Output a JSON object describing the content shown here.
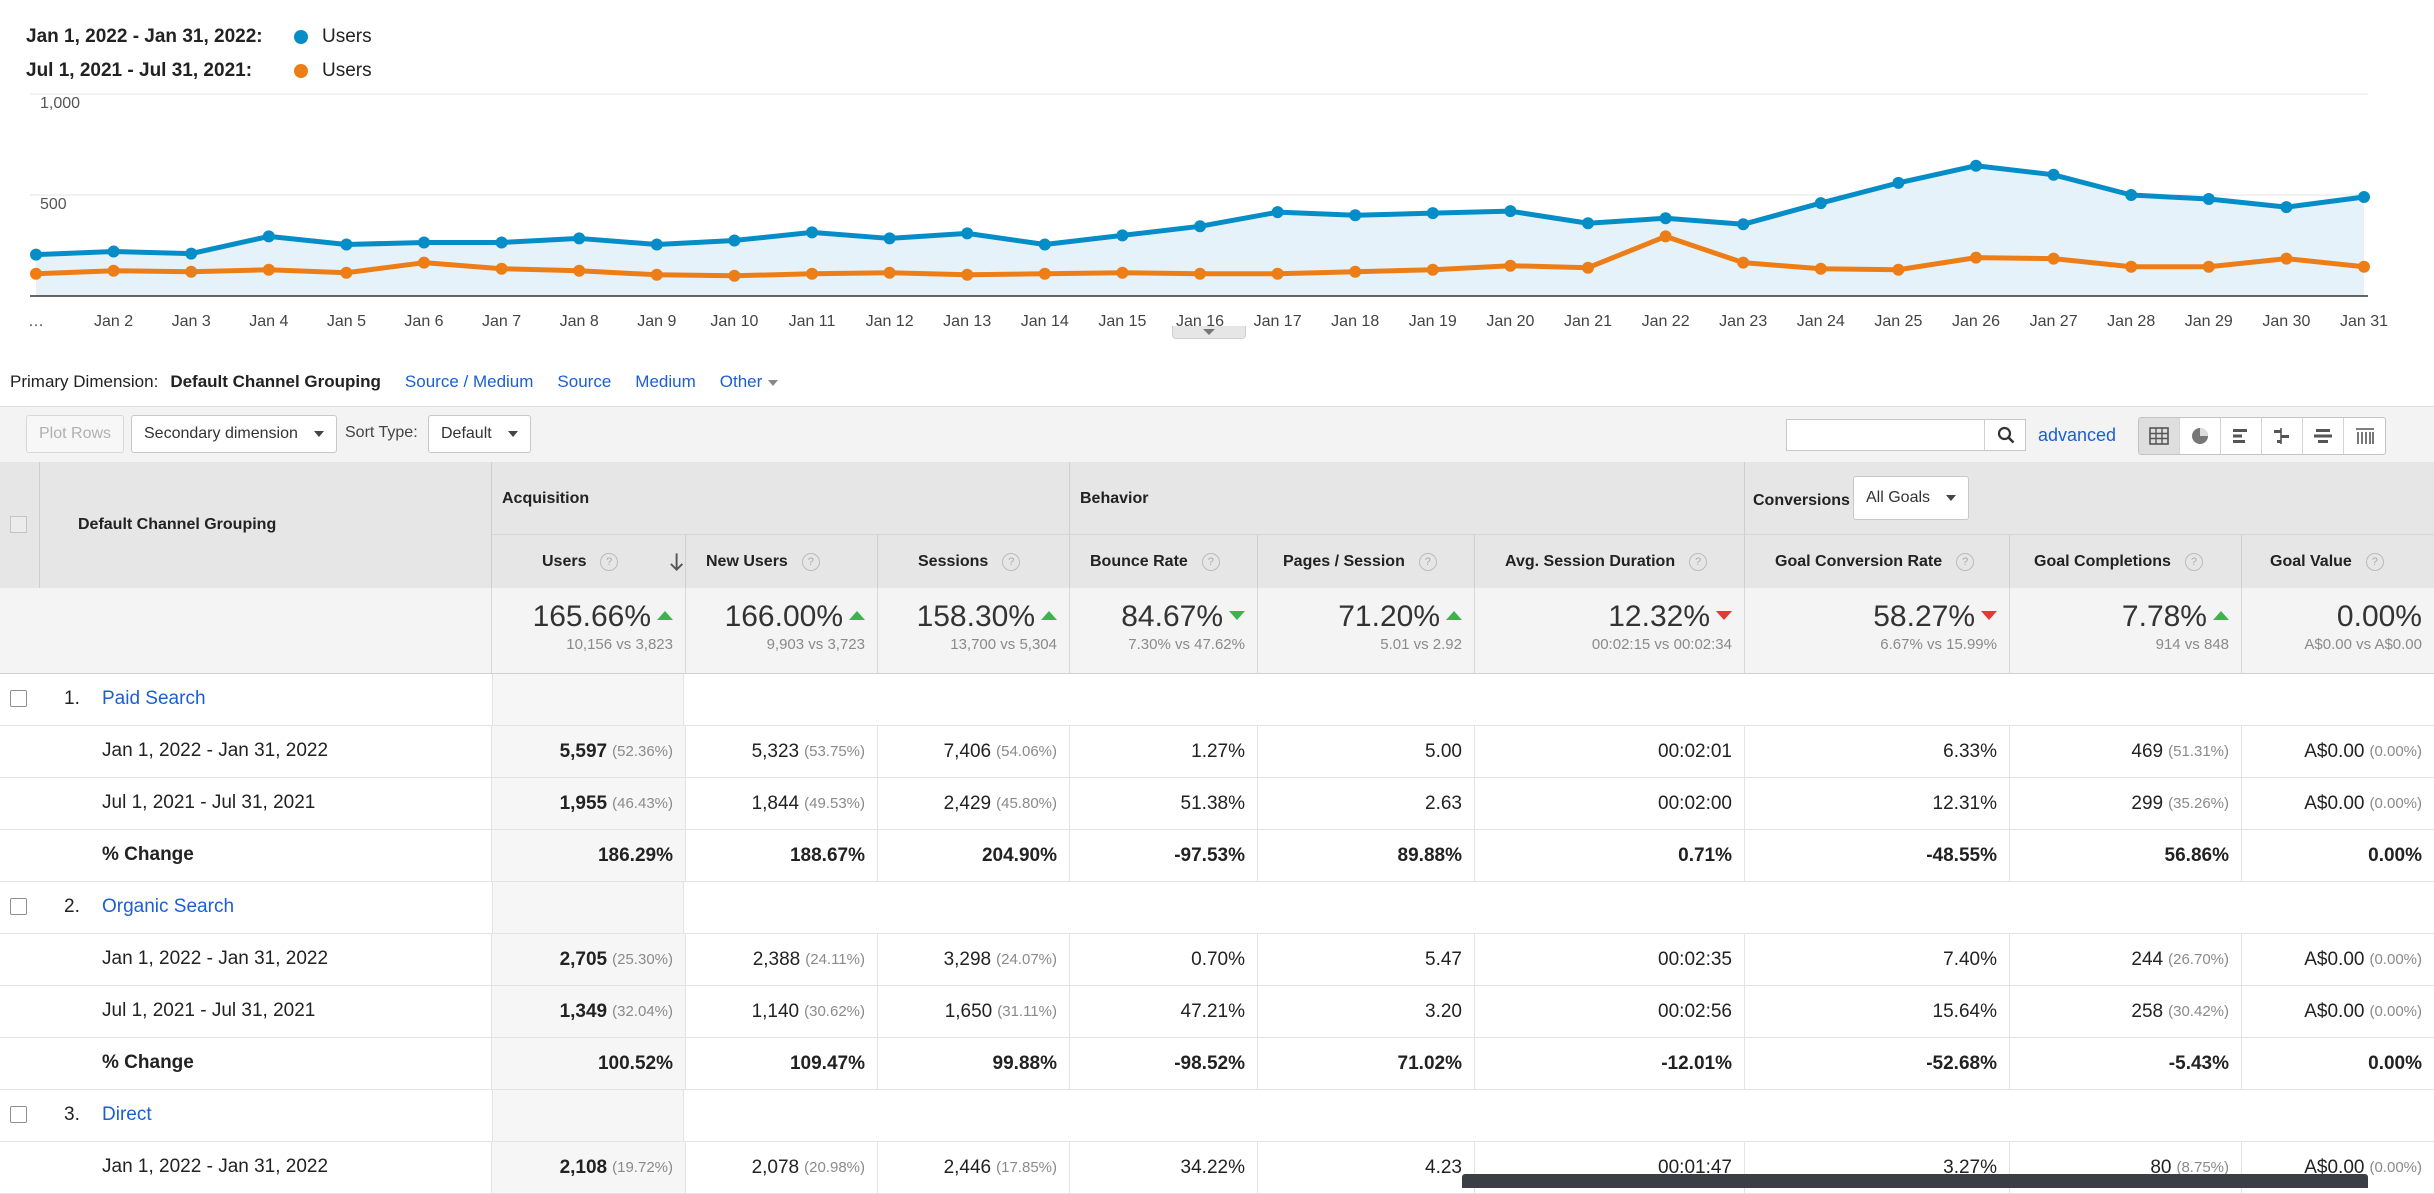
{
  "legend": [
    {
      "range": "Jan 1, 2022 - Jan 31, 2022:",
      "series": "Users",
      "color": "#058dc7"
    },
    {
      "range": "Jul 1, 2021 - Jul 31, 2021:",
      "series": "Users",
      "color": "#ed7e17"
    }
  ],
  "chart_data": {
    "type": "line",
    "x": [
      "…",
      "Jan 2",
      "Jan 3",
      "Jan 4",
      "Jan 5",
      "Jan 6",
      "Jan 7",
      "Jan 8",
      "Jan 9",
      "Jan 10",
      "Jan 11",
      "Jan 12",
      "Jan 13",
      "Jan 14",
      "Jan 15",
      "Jan 16",
      "Jan 17",
      "Jan 18",
      "Jan 19",
      "Jan 20",
      "Jan 21",
      "Jan 22",
      "Jan 23",
      "Jan 24",
      "Jan 25",
      "Jan 26",
      "Jan 27",
      "Jan 28",
      "Jan 29",
      "Jan 30",
      "Jan 31"
    ],
    "y_ticks": [
      "1,000",
      "500"
    ],
    "ylim": [
      0,
      1000
    ],
    "series": [
      {
        "name": "Users",
        "color": "#058dc7",
        "fill": true,
        "values": [
          205,
          220,
          210,
          295,
          255,
          265,
          265,
          285,
          255,
          275,
          315,
          285,
          310,
          255,
          300,
          345,
          415,
          400,
          410,
          420,
          360,
          385,
          355,
          460,
          560,
          645,
          600,
          500,
          480,
          440,
          490
        ]
      },
      {
        "name": "Users",
        "color": "#ed7e17",
        "fill": false,
        "values": [
          110,
          125,
          120,
          130,
          115,
          165,
          135,
          125,
          105,
          100,
          110,
          115,
          105,
          110,
          115,
          110,
          110,
          120,
          130,
          150,
          140,
          295,
          165,
          135,
          130,
          190,
          185,
          145,
          145,
          185,
          145
        ]
      }
    ],
    "grid": true,
    "legend": "top-left"
  },
  "dimensions": {
    "label": "Primary Dimension:",
    "active": "Default Channel Grouping",
    "links": [
      "Source / Medium",
      "Source",
      "Medium"
    ],
    "other": "Other"
  },
  "toolbar": {
    "plot_rows": "Plot Rows",
    "secondary": "Secondary dimension",
    "sort_type_label": "Sort Type:",
    "sort_type_value": "Default",
    "search_value": "",
    "advanced": "advanced"
  },
  "table": {
    "dim_header": "Default Channel Grouping",
    "groups": {
      "acquisition": "Acquisition",
      "behavior": "Behavior",
      "conversions": "Conversions",
      "goals_select": "All Goals"
    },
    "columns": [
      "Users",
      "New Users",
      "Sessions",
      "Bounce Rate",
      "Pages / Session",
      "Avg. Session Duration",
      "Goal Conversion Rate",
      "Goal Completions",
      "Goal Value"
    ],
    "summary": [
      {
        "value": "165.66%",
        "dir": "up",
        "sub": "10,156 vs 3,823"
      },
      {
        "value": "166.00%",
        "dir": "up",
        "sub": "9,903 vs 3,723"
      },
      {
        "value": "158.30%",
        "dir": "up",
        "sub": "13,700 vs 5,304"
      },
      {
        "value": "84.67%",
        "dir": "down-green",
        "sub": "7.30% vs 47.62%"
      },
      {
        "value": "71.20%",
        "dir": "up",
        "sub": "5.01 vs 2.92"
      },
      {
        "value": "12.32%",
        "dir": "down",
        "sub": "00:02:15 vs 00:02:34"
      },
      {
        "value": "58.27%",
        "dir": "down",
        "sub": "6.67% vs 15.99%"
      },
      {
        "value": "7.78%",
        "dir": "up",
        "sub": "914 vs 848"
      },
      {
        "value": "0.00%",
        "dir": "none",
        "sub": "A$0.00 vs A$0.00"
      }
    ],
    "rows": [
      {
        "kind": "group",
        "num": "1.",
        "name": "Paid Search"
      },
      {
        "kind": "data",
        "label": "Jan 1, 2022 - Jan 31, 2022",
        "cells": [
          [
            "5,597",
            "(52.36%)"
          ],
          [
            "5,323",
            "(53.75%)"
          ],
          [
            "7,406",
            "(54.06%)"
          ],
          [
            "1.27%",
            ""
          ],
          [
            "5.00",
            ""
          ],
          [
            "00:02:01",
            ""
          ],
          [
            "6.33%",
            ""
          ],
          [
            "469",
            "(51.31%)"
          ],
          [
            "A$0.00",
            "(0.00%)"
          ]
        ]
      },
      {
        "kind": "data",
        "label": "Jul 1, 2021 - Jul 31, 2021",
        "cells": [
          [
            "1,955",
            "(46.43%)"
          ],
          [
            "1,844",
            "(49.53%)"
          ],
          [
            "2,429",
            "(45.80%)"
          ],
          [
            "51.38%",
            ""
          ],
          [
            "2.63",
            ""
          ],
          [
            "00:02:00",
            ""
          ],
          [
            "12.31%",
            ""
          ],
          [
            "299",
            "(35.26%)"
          ],
          [
            "A$0.00",
            "(0.00%)"
          ]
        ]
      },
      {
        "kind": "change",
        "label": "% Change",
        "cells": [
          [
            "186.29%",
            ""
          ],
          [
            "188.67%",
            ""
          ],
          [
            "204.90%",
            ""
          ],
          [
            "-97.53%",
            ""
          ],
          [
            "89.88%",
            ""
          ],
          [
            "0.71%",
            ""
          ],
          [
            "-48.55%",
            ""
          ],
          [
            "56.86%",
            ""
          ],
          [
            "0.00%",
            ""
          ]
        ]
      },
      {
        "kind": "group",
        "num": "2.",
        "name": "Organic Search"
      },
      {
        "kind": "data",
        "label": "Jan 1, 2022 - Jan 31, 2022",
        "cells": [
          [
            "2,705",
            "(25.30%)"
          ],
          [
            "2,388",
            "(24.11%)"
          ],
          [
            "3,298",
            "(24.07%)"
          ],
          [
            "0.70%",
            ""
          ],
          [
            "5.47",
            ""
          ],
          [
            "00:02:35",
            ""
          ],
          [
            "7.40%",
            ""
          ],
          [
            "244",
            "(26.70%)"
          ],
          [
            "A$0.00",
            "(0.00%)"
          ]
        ]
      },
      {
        "kind": "data",
        "label": "Jul 1, 2021 - Jul 31, 2021",
        "cells": [
          [
            "1,349",
            "(32.04%)"
          ],
          [
            "1,140",
            "(30.62%)"
          ],
          [
            "1,650",
            "(31.11%)"
          ],
          [
            "47.21%",
            ""
          ],
          [
            "3.20",
            ""
          ],
          [
            "00:02:56",
            ""
          ],
          [
            "15.64%",
            ""
          ],
          [
            "258",
            "(30.42%)"
          ],
          [
            "A$0.00",
            "(0.00%)"
          ]
        ]
      },
      {
        "kind": "change",
        "label": "% Change",
        "cells": [
          [
            "100.52%",
            ""
          ],
          [
            "109.47%",
            ""
          ],
          [
            "99.88%",
            ""
          ],
          [
            "-98.52%",
            ""
          ],
          [
            "71.02%",
            ""
          ],
          [
            "-12.01%",
            ""
          ],
          [
            "-52.68%",
            ""
          ],
          [
            "-5.43%",
            ""
          ],
          [
            "0.00%",
            ""
          ]
        ]
      },
      {
        "kind": "group",
        "num": "3.",
        "name": "Direct"
      },
      {
        "kind": "data",
        "label": "Jan 1, 2022 - Jan 31, 2022",
        "cells": [
          [
            "2,108",
            "(19.72%)"
          ],
          [
            "2,078",
            "(20.98%)"
          ],
          [
            "2,446",
            "(17.85%)"
          ],
          [
            "34.22%",
            ""
          ],
          [
            "4.23",
            ""
          ],
          [
            "00:01:47",
            ""
          ],
          [
            "3.27%",
            ""
          ],
          [
            "80",
            "(8.75%)"
          ],
          [
            "A$0.00",
            "(0.00%)"
          ]
        ]
      }
    ]
  }
}
